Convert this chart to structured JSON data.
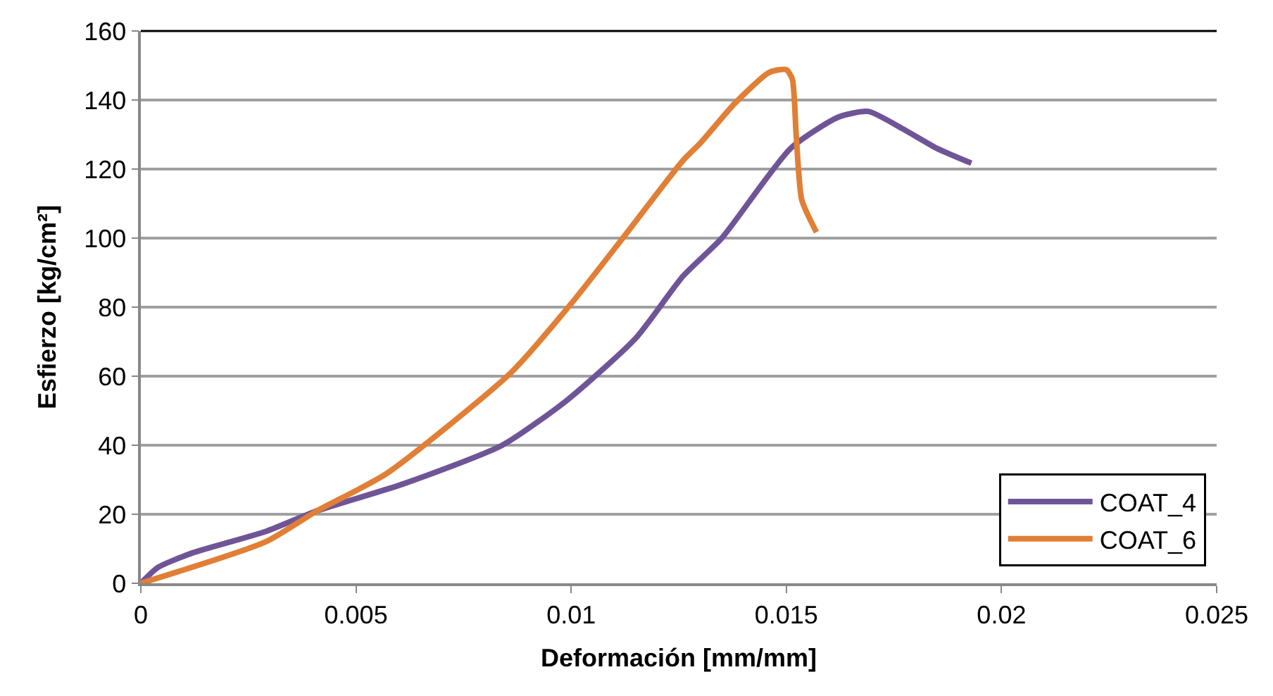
{
  "chart_data": {
    "type": "line",
    "xlabel": "Deformación [mm/mm]",
    "ylabel": "Esfierzo [kg/cm²]",
    "xlim": [
      0,
      0.025
    ],
    "xticks": [
      0,
      0.005,
      0.01,
      0.015,
      0.02,
      0.025
    ],
    "ylim": [
      0,
      160
    ],
    "yticks": [
      0,
      20,
      40,
      60,
      80,
      100,
      120,
      140,
      160
    ],
    "grid": "y",
    "legend": "bottom right",
    "marker": "none",
    "line_style": "solid",
    "series": [
      {
        "name": "COAT_4",
        "color": "#6f5597",
        "x": [
          0,
          0.0004,
          0.0012,
          0.0029,
          0.0041,
          0.0061,
          0.0084,
          0.0099,
          0.0115,
          0.0126,
          0.0135,
          0.0151,
          0.0162,
          0.0169,
          0.0177,
          0.0185,
          0.0193
        ],
        "values": [
          0,
          4.6,
          8.8,
          15,
          21,
          28.8,
          40,
          53,
          71,
          89,
          100,
          126,
          135,
          136.7,
          131.7,
          126,
          121.7
        ]
      },
      {
        "name": "COAT_6",
        "color": "#e07f35",
        "x": [
          0,
          0.0029,
          0.0041,
          0.0057,
          0.0086,
          0.01,
          0.0112,
          0.0126,
          0.013,
          0.0138,
          0.0146,
          0.015,
          0.01514,
          0.01523,
          0.01536,
          0.0157
        ],
        "values": [
          0,
          12,
          21,
          31.7,
          61,
          81,
          100,
          122.5,
          127.5,
          139,
          148,
          148.8,
          146,
          129.6,
          111,
          101.7
        ]
      }
    ]
  }
}
